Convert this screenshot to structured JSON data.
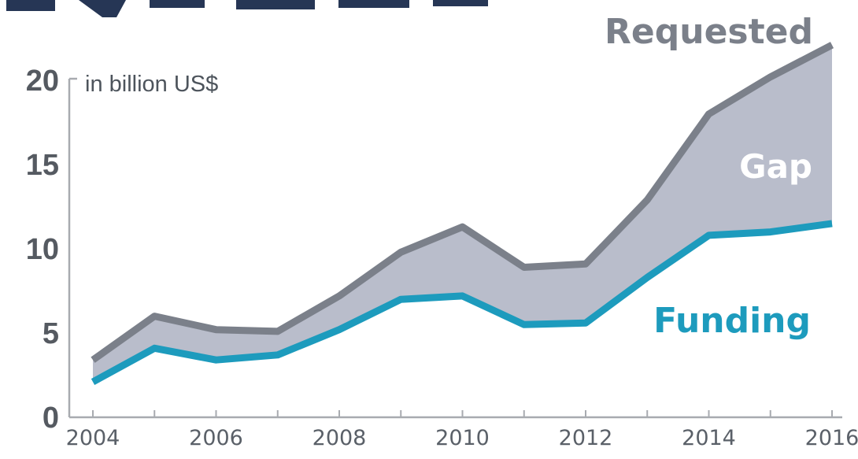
{
  "colors": {
    "requested": "#7b808a",
    "funding": "#1d9bbd",
    "gap_fill": "#b9bdcb",
    "axis": "#a8abb0",
    "title": "#1a2b4c"
  },
  "chart_data": {
    "type": "area",
    "unit_label": "in billion US$",
    "x": [
      2004,
      2005,
      2006,
      2007,
      2008,
      2009,
      2010,
      2011,
      2012,
      2013,
      2014,
      2015,
      2016
    ],
    "series": [
      {
        "name": "Requested",
        "values": [
          3.4,
          6.0,
          5.2,
          5.1,
          7.2,
          9.8,
          11.3,
          8.9,
          9.1,
          12.9,
          18.0,
          20.2,
          22.1
        ]
      },
      {
        "name": "Funding",
        "values": [
          2.1,
          4.1,
          3.4,
          3.7,
          5.2,
          7.0,
          7.2,
          5.5,
          5.6,
          8.3,
          10.8,
          11.0,
          11.5
        ]
      }
    ],
    "area_label": "Gap",
    "x_ticks": [
      "2004",
      "2006",
      "2008",
      "2010",
      "2012",
      "2014",
      "2016"
    ],
    "y_ticks": [
      "0",
      "5",
      "10",
      "15",
      "20"
    ],
    "ylim": [
      0,
      22.5
    ],
    "xlim": [
      2004,
      2016
    ],
    "grid": false,
    "legend": "inline labels"
  }
}
